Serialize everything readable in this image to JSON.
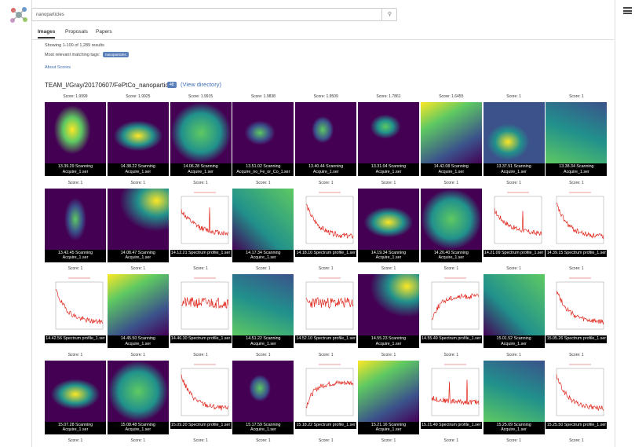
{
  "search": {
    "query": "nanoparticles"
  },
  "tabs": [
    "Images",
    "Proposals",
    "Papers"
  ],
  "summary": {
    "count_text": "Showing 1-100 of 1,289 results",
    "tags_label": "Most relevant matching tags:",
    "tag": "nanoparticles",
    "about": "About Scores"
  },
  "directory": {
    "path": "TEAM_I/Gray/20170607/FePtCo_nanoparticles",
    "badge": "48",
    "link": "(View directory)"
  },
  "results": [
    {
      "score": "Score: 1.9999",
      "caption": "13.39.29 Scanning Acquire_1.ser"
    },
    {
      "score": "Score: 1.9925",
      "caption": "14.38.22 Scanning Acquire_1.ser"
    },
    {
      "score": "Score: 1.9915",
      "caption": "14.06.28 Scanning Acquire_1.ser"
    },
    {
      "score": "Score: 1.9838",
      "caption": "13.51.02 Scanning Acquire_no_Fe_or_Co_1.ser"
    },
    {
      "score": "Score: 1.9509",
      "caption": "13.40.44 Scanning Acquire_1.ser"
    },
    {
      "score": "Score: 1.7861",
      "caption": "13.31.04 Scanning Acquire_1.ser"
    },
    {
      "score": "Score: 1.6455",
      "caption": "14.42.08 Scanning Acquire_1.ser"
    },
    {
      "score": "Score: 1",
      "caption": "13.37.51 Scanning Acquire_1.ser"
    },
    {
      "score": "Score: 1",
      "caption": "13.38.34 Scanning Acquire_1.ser"
    },
    {
      "score": "Score: 1",
      "caption": "13.42.45 Scanning Acquire_1.ser"
    },
    {
      "score": "Score: 1",
      "caption": "14.08.47 Scanning Acquire_1.ser"
    },
    {
      "score": "Score: 1",
      "caption": "14.12.21 Spectrum profile_1.ser"
    },
    {
      "score": "Score: 1",
      "caption": "14.17.34 Scanning Acquire_1.ser"
    },
    {
      "score": "Score: 1",
      "caption": "14.18.10 Spectrum profile_1.ser"
    },
    {
      "score": "Score: 1",
      "caption": "14.19.34 Scanning Acquire_1.ser"
    },
    {
      "score": "Score: 1",
      "caption": "14.20.40 Scanning Acquire_1.ser"
    },
    {
      "score": "Score: 1",
      "caption": "14.21.09 Spectrum profile_1.ser"
    },
    {
      "score": "Score: 1",
      "caption": "14.39.15 Spectrum profile_1.ser"
    },
    {
      "score": "Score: 1",
      "caption": "14.42.56 Spectrum profile_1.ser"
    },
    {
      "score": "Score: 1",
      "caption": "14.45.50 Scanning Acquire_1.ser"
    },
    {
      "score": "Score: 1",
      "caption": "14.46.30 Spectrum profile_1.ser"
    },
    {
      "score": "Score: 1",
      "caption": "14.51.22 Scanning Acquire_1.ser"
    },
    {
      "score": "Score: 1",
      "caption": "14.52.10 Spectrum profile_1.ser"
    },
    {
      "score": "Score: 1",
      "caption": "14.55.23 Scanning Acquire_1.ser"
    },
    {
      "score": "Score: 1",
      "caption": "14.55.49 Spectrum profile_1.ser"
    },
    {
      "score": "Score: 1",
      "caption": "15.01.52 Scanning Acquire_1.ser"
    },
    {
      "score": "Score: 1",
      "caption": "15.05.26 Spectrum profile_1.ser"
    },
    {
      "score": "Score: 1",
      "caption": "15.07.28 Scanning Acquire_1.ser"
    },
    {
      "score": "Score: 1",
      "caption": "15.08.48 Scanning Acquire_1.ser"
    },
    {
      "score": "Score: 1",
      "caption": "15.09.20 Spectrum profile_1.ser"
    },
    {
      "score": "Score: 1",
      "caption": "15.17.59 Scanning Acquire_1.ser"
    },
    {
      "score": "Score: 1",
      "caption": "15.18.22 Spectrum profile_1.ser"
    },
    {
      "score": "Score: 1",
      "caption": "15.21.16 Scanning Acquire_1.ser"
    },
    {
      "score": "Score: 1",
      "caption": "15.21.49 Spectrum profile_1.ser"
    },
    {
      "score": "Score: 1",
      "caption": "15.25.09 Scanning Acquire_1.ser"
    },
    {
      "score": "Score: 1",
      "caption": "15.25.50 Spectrum profile_1.ser"
    }
  ],
  "next_row_scores": [
    "Score: 1",
    "Score: 1",
    "Score: 1",
    "Score: 1",
    "Score: 1",
    "Score: 1",
    "Score: 1",
    "Score: 1",
    "Score: 1"
  ]
}
